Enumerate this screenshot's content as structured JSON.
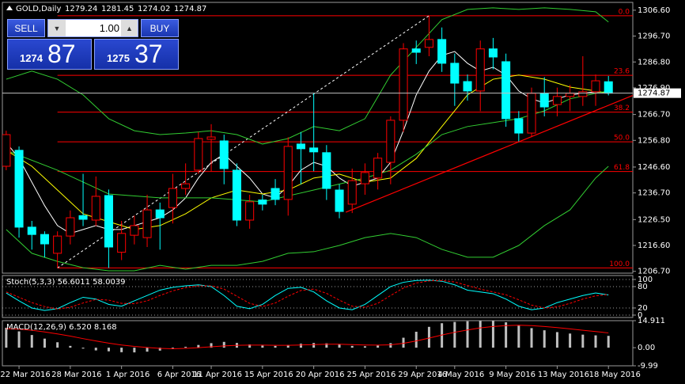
{
  "trade_panel": {
    "sell_label": "SELL",
    "buy_label": "BUY",
    "volume": "1.00",
    "sell_small": "1274",
    "sell_big": "87",
    "buy_small": "1275",
    "buy_big": "37"
  },
  "chart_data": [
    {
      "type": "candlestick",
      "title": "GOLD,Daily",
      "open": [
        1246.9,
        1253.0,
        1223.6,
        1220.8,
        1213.6,
        1220.2,
        1228.0,
        1226.3,
        1235.7,
        1214.0,
        1220.5,
        1219.6,
        1230.2,
        1231.1,
        1238.4,
        1245.4,
        1257.2,
        1256.6,
        1245.4,
        1226.3,
        1234.0,
        1238.4,
        1234.2,
        1255.4,
        1253.9,
        1252.1,
        1237.8,
        1232.4,
        1240.2,
        1242.4,
        1248.4,
        1264.5,
        1291.8,
        1292.4,
        1295.4,
        1286.3,
        1279.3,
        1275.7,
        1291.8,
        1286.9,
        1265.1,
        1259.6,
        1274.8,
        1270.5,
        1273.6,
        1273.6,
        1275.4,
        1279.24
      ],
      "high": [
        1260.5,
        1254.5,
        1226.0,
        1222.0,
        1222.0,
        1230.0,
        1244.0,
        1243.0,
        1238.0,
        1226.0,
        1228.0,
        1236.0,
        1233.0,
        1244.0,
        1248.0,
        1260.0,
        1263.0,
        1259.0,
        1248.0,
        1236.0,
        1236.0,
        1242.0,
        1258.0,
        1260.0,
        1275.0,
        1255.0,
        1240.0,
        1246.0,
        1248.0,
        1252.0,
        1266.0,
        1294.0,
        1295.0,
        1304.5,
        1300.0,
        1290.0,
        1282.0,
        1295.0,
        1296.0,
        1290.0,
        1268.0,
        1277.0,
        1281.0,
        1277.0,
        1278.0,
        1289.0,
        1282.0,
        1281.45
      ],
      "low": [
        1245.4,
        1219.6,
        1215.0,
        1212.0,
        1208.0,
        1217.0,
        1224.0,
        1224.0,
        1208.0,
        1211.0,
        1217.0,
        1216.0,
        1215.0,
        1225.0,
        1236.0,
        1244.0,
        1245.0,
        1240.0,
        1224.0,
        1223.0,
        1230.0,
        1232.0,
        1228.0,
        1240.0,
        1245.0,
        1234.0,
        1227.0,
        1229.0,
        1236.0,
        1238.0,
        1240.0,
        1260.0,
        1286.0,
        1289.0,
        1283.0,
        1270.0,
        1272.0,
        1268.0,
        1284.0,
        1262.0,
        1256.0,
        1258.0,
        1266.0,
        1266.0,
        1268.0,
        1270.0,
        1270.0,
        1274.02
      ],
      "close": [
        1259.0,
        1223.6,
        1220.8,
        1217.2,
        1220.2,
        1227.2,
        1226.6,
        1235.4,
        1216.0,
        1221.2,
        1224.2,
        1230.2,
        1227.2,
        1238.4,
        1240.2,
        1257.5,
        1258.1,
        1246.0,
        1226.3,
        1233.3,
        1232.4,
        1234.2,
        1254.5,
        1253.6,
        1252.4,
        1238.4,
        1229.6,
        1241.4,
        1244.5,
        1250.0,
        1264.5,
        1291.8,
        1290.5,
        1295.4,
        1286.3,
        1278.7,
        1275.7,
        1291.8,
        1288.7,
        1265.1,
        1259.6,
        1274.8,
        1269.6,
        1273.6,
        1274.8,
        1275.4,
        1279.6,
        1274.87
      ],
      "up_color": "#ff0000",
      "down_color": "#00ffff",
      "xlim": [
        -0.3,
        48.9
      ],
      "ylim": [
        1206.0,
        1309.6
      ],
      "yticks": [
        {
          "value": 1306.6,
          "label": "1306.60"
        },
        {
          "value": 1296.7,
          "label": "1296.70"
        },
        {
          "value": 1286.8,
          "label": "1286.80"
        },
        {
          "value": 1276.9,
          "label": "1276.90"
        },
        {
          "value": 1266.7,
          "label": "1266.70"
        },
        {
          "value": 1256.8,
          "label": "1256.80"
        },
        {
          "value": 1246.6,
          "label": "1246.60"
        },
        {
          "value": 1236.7,
          "label": "1236.70"
        },
        {
          "value": 1226.5,
          "label": "1226.50"
        },
        {
          "value": 1216.6,
          "label": "1216.60"
        },
        {
          "value": 1206.7,
          "label": "1206.70"
        }
      ],
      "xticks": [
        {
          "value": 1,
          "label": "22 Mar 2016"
        },
        {
          "value": 5,
          "label": "28 Mar 2016"
        },
        {
          "value": 9,
          "label": "1 Apr 2016"
        },
        {
          "value": 13,
          "label": "6 Apr 2016"
        },
        {
          "value": 16,
          "label": "11 Apr 2016"
        },
        {
          "value": 20,
          "label": "15 Apr 2016"
        },
        {
          "value": 24,
          "label": "20 Apr 2016"
        },
        {
          "value": 28,
          "label": "25 Apr 2016"
        },
        {
          "value": 32,
          "label": "29 Apr 2016"
        },
        {
          "value": 35,
          "label": "4 May 2016"
        },
        {
          "value": 39,
          "label": "9 May 2016"
        },
        {
          "value": 43,
          "label": "13 May 2016"
        },
        {
          "value": 47,
          "label": "18 May 2016"
        }
      ],
      "overlays": [
        {
          "color": "#ffffff",
          "values": [
            1256.0,
            1249.9,
            1240.8,
            1231.8,
            1224.2,
            1221.2,
            1222.7,
            1224.2,
            1222.7,
            1222.7,
            1224.2,
            1225.7,
            1227.2,
            1230.2,
            1234.8,
            1242.4,
            1248.4,
            1251.5,
            1246.9,
            1242.4,
            1236.3,
            1234.8,
            1239.3,
            1245.4,
            1248.4,
            1246.9,
            1242.4,
            1239.3,
            1240.8,
            1242.4,
            1248.4,
            1260.5,
            1274.2,
            1283.3,
            1289.3,
            1290.8,
            1286.3,
            1283.3,
            1284.8,
            1281.8,
            1275.7,
            1272.7,
            1271.1,
            1272.7,
            1274.2,
            1274.8,
            1275.4,
            1274.8
          ]
        },
        {
          "color": "#ffff00",
          "x": [
            0,
            2,
            4,
            6,
            8,
            10,
            12,
            14,
            16,
            18,
            20,
            22,
            24,
            26,
            28,
            30,
            32,
            34,
            36,
            38,
            40,
            42,
            44,
            46,
            47
          ],
          "values": [
            1253.0,
            1246.9,
            1237.8,
            1228.7,
            1225.7,
            1222.7,
            1224.2,
            1228.7,
            1234.8,
            1237.8,
            1236.3,
            1237.8,
            1242.4,
            1243.9,
            1240.8,
            1242.4,
            1249.9,
            1262.1,
            1274.2,
            1280.2,
            1281.8,
            1280.2,
            1277.2,
            1275.7,
            1274.8
          ]
        },
        {
          "color": "#32cd32",
          "x": [
            0,
            2,
            4,
            6,
            8,
            10,
            12,
            14,
            16,
            18,
            20,
            22,
            24,
            26,
            28,
            30,
            32,
            34,
            36,
            38,
            40,
            42,
            44,
            46,
            47
          ],
          "values": [
            1280.2,
            1283.3,
            1280.2,
            1274.2,
            1265.1,
            1260.5,
            1259.0,
            1259.6,
            1260.5,
            1259.0,
            1255.4,
            1257.5,
            1262.1,
            1260.5,
            1265.1,
            1281.8,
            1292.4,
            1303.0,
            1306.9,
            1307.5,
            1306.9,
            1307.5,
            1306.9,
            1306.0,
            1302.1
          ]
        },
        {
          "color": "#32cd32",
          "x": [
            0,
            4,
            8,
            12,
            16,
            20,
            24,
            28,
            30,
            32,
            34,
            36,
            38,
            40,
            42,
            44,
            46,
            47
          ],
          "values": [
            1253.0,
            1245.4,
            1236.3,
            1234.8,
            1234.8,
            1233.3,
            1237.8,
            1242.4,
            1245.4,
            1251.5,
            1259.0,
            1262.1,
            1263.6,
            1265.1,
            1268.1,
            1272.7,
            1274.8,
            1275.7
          ]
        },
        {
          "color": "#32cd32",
          "x": [
            0,
            2,
            4,
            6,
            8,
            10,
            12,
            14,
            16,
            18,
            20,
            22,
            24,
            26,
            28,
            30,
            32,
            34,
            36,
            38,
            40,
            42,
            44,
            46,
            47
          ],
          "values": [
            1222.7,
            1213.6,
            1210.5,
            1208.1,
            1206.9,
            1206.9,
            1209.0,
            1207.5,
            1209.0,
            1209.0,
            1210.5,
            1213.6,
            1214.2,
            1216.6,
            1219.6,
            1221.2,
            1219.6,
            1215.1,
            1212.1,
            1212.1,
            1216.6,
            1224.2,
            1230.2,
            1242.4,
            1246.9
          ]
        }
      ],
      "fibo": {
        "color": "#ff0000",
        "x": [
          4,
          33
        ],
        "values": [
          1208.0,
          1304.5
        ],
        "levels": [
          {
            "label": "0.0",
            "value": 1304.5
          },
          {
            "label": "23.6",
            "value": 1281.7
          },
          {
            "label": "38.2",
            "value": 1267.6
          },
          {
            "label": "50.0",
            "value": 1256.25
          },
          {
            "label": "61.8",
            "value": 1244.9
          },
          {
            "label": "100.0",
            "value": 1208.0
          }
        ]
      },
      "trendline": {
        "color": "#ff0000",
        "x": [
          26.5,
          49.3
        ],
        "values": [
          1229.3,
          1274.8
        ]
      },
      "price_line_color": "#c0c0c0"
    },
    {
      "type": "line",
      "title": "Stoch(5,3,3) 56.6011 58.0039",
      "ylim": [
        -6.7,
        111
      ],
      "yticks": [
        100,
        80,
        20,
        0
      ],
      "series": [
        {
          "color": "#00ffff",
          "values": [
            62,
            40,
            20,
            13,
            18,
            35,
            50,
            45,
            30,
            25,
            40,
            55,
            70,
            78,
            82,
            85,
            80,
            55,
            25,
            18,
            30,
            55,
            75,
            78,
            65,
            40,
            20,
            15,
            30,
            55,
            80,
            92,
            97,
            98,
            95,
            85,
            70,
            65,
            60,
            45,
            25,
            15,
            20,
            35,
            45,
            55,
            62,
            56.6011
          ]
        },
        {
          "color": "#ff0000",
          "dashed": true,
          "values": [
            65,
            50,
            35,
            24,
            17,
            22,
            34,
            44,
            42,
            33,
            32,
            40,
            55,
            68,
            77,
            82,
            82,
            73,
            53,
            33,
            24,
            34,
            53,
            69,
            73,
            61,
            42,
            25,
            22,
            33,
            55,
            76,
            90,
            96,
            97,
            93,
            83,
            73,
            65,
            57,
            43,
            28,
            20,
            23,
            33,
            45,
            54,
            58.0039
          ]
        }
      ]
    },
    {
      "type": "bar",
      "title": "MACD(12,26,9) 6.520 8.168",
      "ylim": [
        -9.99,
        14.911
      ],
      "yticks": [
        14.911,
        {
          "value": 0,
          "label": "0.00"
        },
        -9.99
      ],
      "color": "#c0c0c0",
      "values": [
        11,
        9,
        7,
        5,
        3,
        1,
        -0.5,
        -1.5,
        -2,
        -2.5,
        -2.6,
        -2.2,
        -1.6,
        -0.8,
        0.5,
        1.5,
        2.5,
        3.2,
        2.6,
        1.8,
        1.2,
        1.0,
        1.5,
        2.2,
        2.6,
        2.4,
        1.8,
        1.0,
        0.8,
        1.2,
        2.5,
        5.5,
        8.8,
        11.5,
        13.5,
        14.2,
        14.6,
        14.8,
        14.9,
        14.0,
        12.2,
        10.8,
        9.6,
        8.6,
        7.8,
        7.2,
        6.8,
        6.52
      ],
      "series": [
        {
          "color": "#ff0000",
          "values": [
            10.5,
            10.2,
            9.6,
            8.7,
            7.6,
            6.4,
            5.0,
            3.7,
            2.5,
            1.5,
            0.7,
            0.1,
            -0.4,
            -0.6,
            -0.4,
            0,
            0.5,
            1.0,
            1.3,
            1.4,
            1.4,
            1.3,
            1.3,
            1.5,
            1.7,
            1.9,
            1.9,
            1.7,
            1.5,
            1.4,
            1.6,
            2.4,
            3.7,
            5.3,
            7.0,
            8.5,
            9.8,
            10.9,
            11.7,
            12.2,
            12.4,
            12.2,
            11.7,
            11.1,
            10.4,
            9.6,
            8.9,
            8.168
          ]
        }
      ]
    }
  ]
}
